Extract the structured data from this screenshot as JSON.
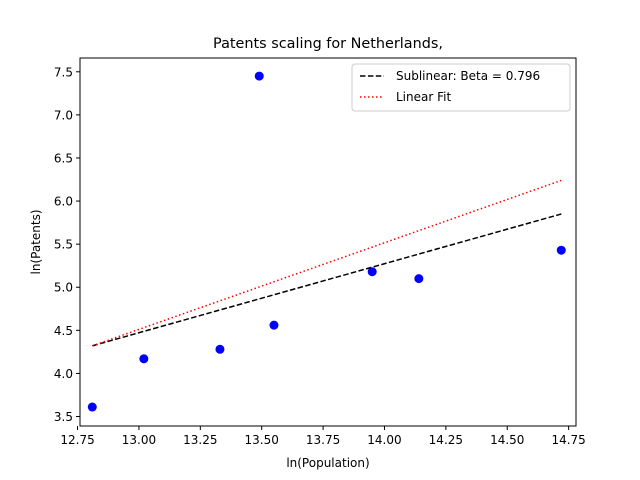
{
  "chart_data": {
    "type": "scatter",
    "title": "Patents scaling for Netherlands,",
    "xlabel": "ln(Population)",
    "ylabel": "ln(Patents)",
    "xlim": [
      12.76,
      14.78
    ],
    "ylim": [
      3.39,
      7.66
    ],
    "xticks": [
      "12.75",
      "13.00",
      "13.25",
      "13.50",
      "13.75",
      "14.00",
      "14.25",
      "14.50",
      "14.75"
    ],
    "yticks": [
      "3.5",
      "4.0",
      "4.5",
      "5.0",
      "5.5",
      "6.0",
      "6.5",
      "7.0",
      "7.5"
    ],
    "grid": false,
    "legend_position": "top-right",
    "points": {
      "color": "#0000ff",
      "x": [
        12.81,
        13.02,
        13.33,
        13.49,
        13.55,
        13.95,
        14.14,
        14.72
      ],
      "y": [
        3.61,
        4.17,
        4.28,
        7.45,
        4.56,
        5.18,
        5.1,
        5.43
      ]
    },
    "lines": [
      {
        "name": "Sublinear: Beta = 0.796",
        "style": "dashed",
        "color": "#000000",
        "x": [
          12.81,
          14.72
        ],
        "y": [
          4.32,
          5.85
        ]
      },
      {
        "name": "Linear Fit",
        "style": "dotted",
        "color": "#ff0000",
        "x": [
          12.81,
          14.72
        ],
        "y": [
          4.32,
          6.24
        ]
      }
    ]
  }
}
